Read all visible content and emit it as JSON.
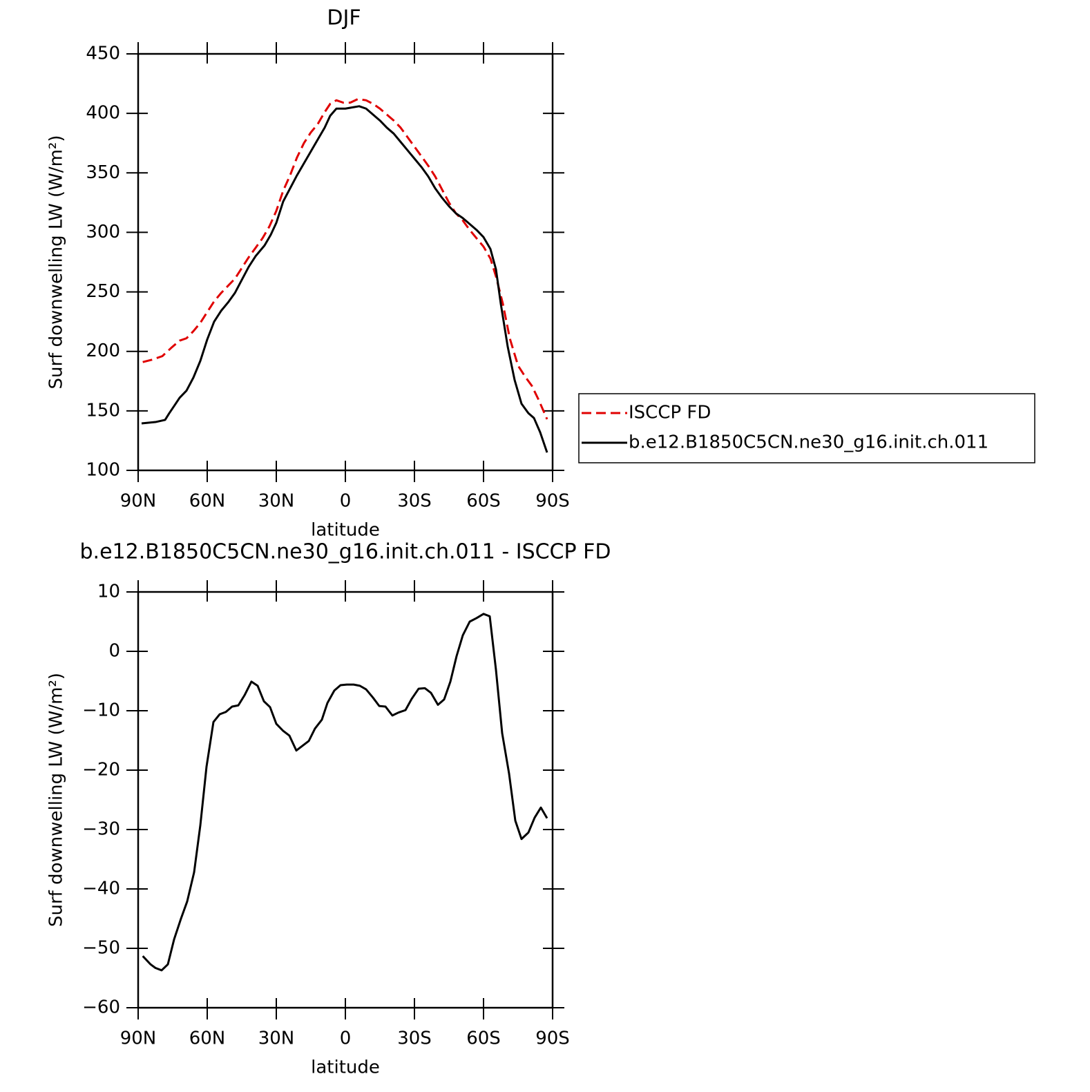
{
  "chart_data": [
    {
      "type": "line",
      "title": "DJF",
      "x_label": "latitude",
      "y_label": "Surf downwelling LW (W/m²)",
      "xlim": [
        90,
        -90
      ],
      "ylim": [
        100,
        450
      ],
      "xticks": [
        {
          "value": 90,
          "label": "90N"
        },
        {
          "value": 60,
          "label": "60N"
        },
        {
          "value": 30,
          "label": "30N"
        },
        0,
        {
          "value": -30,
          "label": "30S"
        },
        {
          "value": -60,
          "label": "60S"
        },
        {
          "value": -90,
          "label": "90S"
        }
      ],
      "yticks": [
        100,
        150,
        200,
        250,
        300,
        350,
        400,
        450
      ],
      "legend": "right",
      "series": [
        {
          "name": "ISCCP FD",
          "color": "#e00000",
          "line_style": "dashed",
          "x": [
            88,
            84,
            79.5,
            75.6,
            72,
            69,
            66,
            63,
            60,
            57,
            54,
            51,
            48,
            45,
            42,
            39,
            36,
            33,
            30,
            27,
            24,
            21,
            18,
            15,
            12,
            9,
            6.6,
            3.9,
            0.9,
            -2.1,
            -5.4,
            -9,
            -12,
            -15,
            -18,
            -21,
            -24,
            -27,
            -30,
            -33,
            -36,
            -39,
            -42,
            -45,
            -48,
            -51,
            -54,
            -57,
            -60,
            -63,
            -65.4,
            -68.4,
            -71.4,
            -75,
            -78,
            -81,
            -84,
            -87.6
          ],
          "values": [
            191,
            193,
            196,
            203,
            209,
            211,
            217,
            224,
            233,
            242,
            249,
            255,
            261,
            270,
            279,
            287,
            295,
            305,
            318,
            335,
            348,
            363,
            375,
            384,
            391,
            401,
            408,
            411,
            409,
            409,
            412,
            411,
            408,
            404,
            399,
            394,
            388,
            380,
            372,
            364,
            356,
            347,
            336,
            325,
            316,
            310,
            302,
            295,
            288,
            278,
            263,
            240,
            211,
            188,
            179,
            171,
            159,
            143
          ]
        },
        {
          "name": "b.e12.B1850C5CN.ne30_g16.init.ch.011",
          "color": "#000000",
          "line_style": "solid",
          "x": [
            88.5,
            82.5,
            78.3,
            76.5,
            74.4,
            72,
            69,
            66,
            63,
            60,
            57,
            54,
            51,
            48,
            45,
            42,
            39,
            35.1,
            32.4,
            30,
            27,
            24,
            21,
            18,
            15,
            12,
            9,
            6.6,
            3.9,
            0,
            -3,
            -6,
            -9,
            -12,
            -15,
            -18,
            -21,
            -24,
            -27,
            -30,
            -33,
            -36,
            -39,
            -42,
            -45,
            -48,
            -51,
            -54,
            -57,
            -60,
            -63,
            -65.4,
            -67.5,
            -70.5,
            -73.5,
            -76.5,
            -79.5,
            -81.9,
            -84.6,
            -87.6
          ],
          "values": [
            139.5,
            140.6,
            142.4,
            148,
            154,
            161,
            167,
            178,
            192,
            210,
            225,
            234,
            241,
            249,
            260,
            271,
            280,
            289,
            298,
            308,
            326,
            337,
            348,
            358,
            368,
            378,
            388,
            398,
            404,
            404,
            405,
            406,
            404,
            399,
            394,
            388,
            383,
            376,
            369,
            362,
            355,
            347,
            337,
            329,
            322,
            316,
            312,
            307,
            302,
            296,
            286,
            269,
            240,
            204,
            176,
            156,
            148,
            144,
            132,
            115
          ]
        }
      ]
    },
    {
      "type": "line",
      "title": "b.e12.B1850C5CN.ne30_g16.init.ch.011 - ISCCP FD",
      "x_label": "latitude",
      "y_label": "Surf downwelling LW (W/m²)",
      "xlim": [
        90,
        -90
      ],
      "ylim": [
        -60,
        10
      ],
      "xticks": [
        {
          "value": 90,
          "label": "90N"
        },
        {
          "value": 60,
          "label": "60N"
        },
        {
          "value": 30,
          "label": "30N"
        },
        0,
        {
          "value": -30,
          "label": "30S"
        },
        {
          "value": -60,
          "label": "60S"
        },
        {
          "value": -90,
          "label": "90S"
        }
      ],
      "yticks": [
        {
          "value": -60,
          "label": "−60"
        },
        {
          "value": -50,
          "label": "−50"
        },
        {
          "value": -40,
          "label": "−40"
        },
        {
          "value": -30,
          "label": "−30"
        },
        {
          "value": -20,
          "label": "−20"
        },
        {
          "value": -10,
          "label": "−10"
        },
        0,
        10
      ],
      "series": [
        {
          "color": "#000000",
          "line_style": "solid",
          "x": [
            88,
            84.6,
            82.5,
            79.8,
            77.1,
            74.4,
            71.4,
            68.7,
            65.7,
            63,
            60.3,
            57.3,
            54.6,
            51.9,
            49.2,
            46.5,
            43.8,
            40.8,
            38.1,
            35.4,
            32.7,
            30,
            27,
            24.3,
            21.3,
            18.6,
            15.9,
            13.2,
            10.2,
            7.8,
            4.8,
            2.1,
            -0.6,
            -3.6,
            -6.3,
            -9,
            -12,
            -14.7,
            -17.4,
            -20.4,
            -23.1,
            -26.1,
            -28.8,
            -31.8,
            -34.5,
            -37.2,
            -40.2,
            -42.9,
            -45.6,
            -48.3,
            -51,
            -54,
            -57,
            -60,
            -62.7,
            -65.4,
            -68.1,
            -71.1,
            -73.8,
            -76.5,
            -79.5,
            -82.2,
            -84.9,
            -87.6
          ],
          "values": [
            -51.3,
            -52.7,
            -53.3,
            -53.7,
            -52.7,
            -48.5,
            -45,
            -42.1,
            -37.2,
            -29.3,
            -19.4,
            -11.9,
            -10.6,
            -10.2,
            -9.3,
            -9.1,
            -7.4,
            -5.1,
            -5.8,
            -8.4,
            -9.4,
            -12.2,
            -13.4,
            -14.2,
            -16.7,
            -15.9,
            -15.1,
            -13,
            -11.5,
            -8.7,
            -6.6,
            -5.7,
            -5.6,
            -5.6,
            -5.8,
            -6.4,
            -7.8,
            -9.2,
            -9.3,
            -10.8,
            -10.3,
            -9.9,
            -8,
            -6.3,
            -6.2,
            -7,
            -9,
            -8.1,
            -5.1,
            -0.8,
            2.7,
            5,
            5.6,
            6.3,
            5.9,
            -3.1,
            -13.8,
            -20.6,
            -28.5,
            -31.6,
            -30.5,
            -28,
            -26.3,
            -28.1
          ]
        }
      ]
    }
  ]
}
